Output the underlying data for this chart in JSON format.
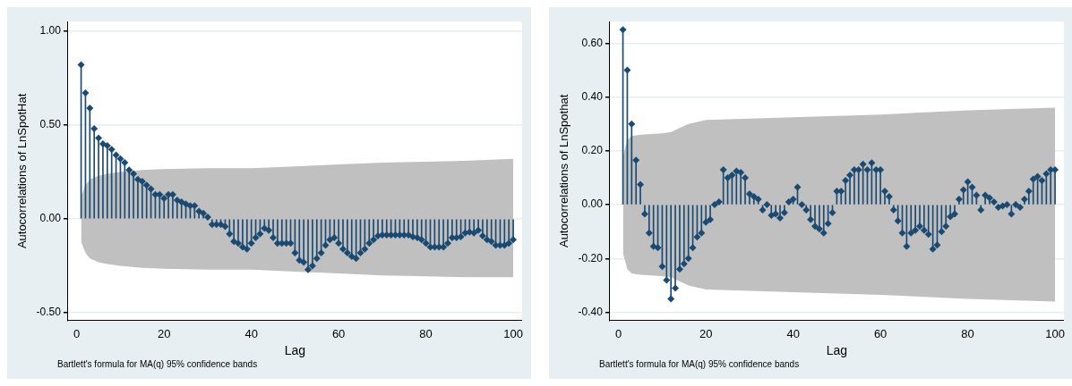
{
  "chart_data": [
    {
      "type": "lollipop",
      "xlabel": "Lag",
      "ylabel": "Autocorrelations of LnSpotHat",
      "annotations": [
        "Bartlett's formula for MA(q) 95% confidence bands"
      ],
      "grid": "y",
      "xlim": [
        -2,
        102
      ],
      "xticks": [
        0,
        20,
        40,
        60,
        80,
        100
      ],
      "ylim": [
        -0.54,
        1.05
      ],
      "yticks": [
        {
          "value": -0.5,
          "label": "-0.50"
        },
        {
          "value": 0,
          "label": "0.00"
        },
        {
          "value": 0.5,
          "label": "0.50"
        },
        {
          "value": 1,
          "label": "1.00"
        }
      ],
      "series": [
        {
          "type": "area",
          "color": "#c0c0c0",
          "x": [
            1,
            2,
            3,
            5,
            7,
            10,
            15,
            20,
            30,
            40,
            50,
            60,
            70,
            80,
            90,
            100
          ],
          "values": [
            0.12,
            0.18,
            0.21,
            0.23,
            0.24,
            0.25,
            0.26,
            0.265,
            0.27,
            0.27,
            0.28,
            0.29,
            0.3,
            0.305,
            0.31,
            0.32
          ]
        },
        {
          "type": "area",
          "color": "#c0c0c0",
          "x": [
            1,
            2,
            3,
            5,
            7,
            10,
            15,
            20,
            30,
            40,
            50,
            60,
            70,
            80,
            90,
            100
          ],
          "values": [
            -0.12,
            -0.18,
            -0.21,
            -0.23,
            -0.24,
            -0.25,
            -0.26,
            -0.265,
            -0.27,
            -0.27,
            -0.28,
            -0.29,
            -0.3,
            -0.305,
            -0.31,
            -0.31
          ]
        },
        {
          "color": "#1a4a72",
          "marker": "diamond",
          "x": [
            1,
            2,
            3,
            4,
            5,
            6,
            7,
            8,
            9,
            10,
            11,
            12,
            13,
            14,
            15,
            16,
            17,
            18,
            19,
            20,
            21,
            22,
            23,
            24,
            25,
            26,
            27,
            28,
            29,
            30,
            31,
            32,
            33,
            34,
            35,
            36,
            37,
            38,
            39,
            40,
            41,
            42,
            43,
            44,
            45,
            46,
            47,
            48,
            49,
            50,
            51,
            52,
            53,
            54,
            55,
            56,
            57,
            58,
            59,
            60,
            61,
            62,
            63,
            64,
            65,
            66,
            67,
            68,
            69,
            70,
            71,
            72,
            73,
            74,
            75,
            76,
            77,
            78,
            79,
            80,
            81,
            82,
            83,
            84,
            85,
            86,
            87,
            88,
            89,
            90,
            91,
            92,
            93,
            94,
            95,
            96,
            97,
            98,
            99,
            100
          ],
          "values": [
            0.82,
            0.67,
            0.59,
            0.48,
            0.43,
            0.4,
            0.39,
            0.37,
            0.34,
            0.32,
            0.3,
            0.26,
            0.24,
            0.21,
            0.2,
            0.18,
            0.16,
            0.13,
            0.13,
            0.11,
            0.13,
            0.13,
            0.1,
            0.09,
            0.08,
            0.07,
            0.07,
            0.04,
            0.03,
            0.01,
            -0.03,
            -0.03,
            -0.03,
            -0.04,
            -0.08,
            -0.12,
            -0.13,
            -0.15,
            -0.16,
            -0.13,
            -0.1,
            -0.08,
            -0.05,
            -0.06,
            -0.1,
            -0.13,
            -0.13,
            -0.13,
            -0.13,
            -0.18,
            -0.22,
            -0.23,
            -0.27,
            -0.25,
            -0.21,
            -0.18,
            -0.14,
            -0.11,
            -0.1,
            -0.13,
            -0.16,
            -0.18,
            -0.2,
            -0.21,
            -0.18,
            -0.16,
            -0.13,
            -0.11,
            -0.09,
            -0.085,
            -0.085,
            -0.085,
            -0.085,
            -0.085,
            -0.085,
            -0.085,
            -0.095,
            -0.1,
            -0.11,
            -0.13,
            -0.15,
            -0.15,
            -0.15,
            -0.15,
            -0.13,
            -0.1,
            -0.1,
            -0.095,
            -0.075,
            -0.07,
            -0.075,
            -0.06,
            -0.09,
            -0.11,
            -0.12,
            -0.14,
            -0.14,
            -0.14,
            -0.13,
            -0.11
          ]
        }
      ]
    },
    {
      "type": "lollipop",
      "xlabel": "Lag",
      "ylabel": "Autocorrelations of LnSpothat",
      "annotations": [
        "Bartlett's formula for MA(q) 95% confidence bands"
      ],
      "grid": "y",
      "xlim": [
        -2,
        102
      ],
      "xticks": [
        0,
        20,
        40,
        60,
        80,
        100
      ],
      "ylim": [
        -0.43,
        0.68
      ],
      "yticks": [
        {
          "value": -0.4,
          "label": "-0.40"
        },
        {
          "value": -0.2,
          "label": "-0.20"
        },
        {
          "value": 0,
          "label": "0.00"
        },
        {
          "value": 0.2,
          "label": "0.20"
        },
        {
          "value": 0.4,
          "label": "0.40"
        },
        {
          "value": 0.6,
          "label": "0.60"
        }
      ],
      "series": [
        {
          "type": "area",
          "color": "#c0c0c0",
          "x": [
            1,
            2,
            3,
            5,
            10,
            12,
            14,
            16,
            20,
            30,
            40,
            60,
            80,
            100
          ],
          "values": [
            0.18,
            0.24,
            0.255,
            0.26,
            0.265,
            0.27,
            0.285,
            0.3,
            0.315,
            0.32,
            0.325,
            0.335,
            0.35,
            0.36
          ]
        },
        {
          "type": "area",
          "color": "#c0c0c0",
          "x": [
            1,
            2,
            3,
            5,
            10,
            12,
            14,
            16,
            20,
            30,
            40,
            60,
            80,
            100
          ],
          "values": [
            -0.18,
            -0.24,
            -0.255,
            -0.26,
            -0.265,
            -0.27,
            -0.285,
            -0.3,
            -0.315,
            -0.32,
            -0.325,
            -0.335,
            -0.35,
            -0.36
          ]
        },
        {
          "color": "#1a4a72",
          "marker": "diamond",
          "x": [
            1,
            2,
            3,
            4,
            5,
            6,
            7,
            8,
            9,
            10,
            11,
            12,
            13,
            14,
            15,
            16,
            17,
            18,
            19,
            20,
            21,
            22,
            23,
            24,
            25,
            26,
            27,
            28,
            29,
            30,
            31,
            32,
            33,
            34,
            35,
            36,
            37,
            38,
            39,
            40,
            41,
            42,
            43,
            44,
            45,
            46,
            47,
            48,
            49,
            50,
            51,
            52,
            53,
            54,
            55,
            56,
            57,
            58,
            59,
            60,
            61,
            62,
            63,
            64,
            65,
            66,
            67,
            68,
            69,
            70,
            71,
            72,
            73,
            74,
            75,
            76,
            77,
            78,
            79,
            80,
            81,
            82,
            83,
            84,
            85,
            86,
            87,
            88,
            89,
            90,
            91,
            92,
            93,
            94,
            95,
            96,
            97,
            98,
            99,
            100
          ],
          "values": [
            0.65,
            0.5,
            0.3,
            0.165,
            0.075,
            -0.035,
            -0.105,
            -0.155,
            -0.16,
            -0.23,
            -0.28,
            -0.35,
            -0.31,
            -0.24,
            -0.22,
            -0.2,
            -0.16,
            -0.12,
            -0.105,
            -0.065,
            -0.055,
            0,
            0.01,
            0.13,
            0.1,
            0.11,
            0.125,
            0.12,
            0.1,
            0.04,
            0.03,
            0.02,
            -0.02,
            0,
            -0.04,
            -0.035,
            -0.05,
            -0.03,
            0.01,
            0.02,
            0.065,
            0,
            -0.02,
            -0.055,
            -0.08,
            -0.09,
            -0.105,
            -0.07,
            -0.03,
            0.05,
            0.05,
            0.09,
            0.11,
            0.13,
            0.13,
            0.15,
            0.13,
            0.155,
            0.13,
            0.13,
            0.05,
            0.03,
            -0.02,
            -0.06,
            -0.105,
            -0.155,
            -0.105,
            -0.095,
            -0.08,
            -0.095,
            -0.11,
            -0.165,
            -0.15,
            -0.1,
            -0.08,
            -0.045,
            -0.035,
            0.02,
            0.055,
            0.085,
            0.065,
            0.035,
            -0.02,
            0.035,
            0.025,
            0.01,
            -0.01,
            -0.005,
            0,
            -0.035,
            0,
            -0.01,
            0.02,
            0.05,
            0.095,
            0.105,
            0.09,
            0.115,
            0.13,
            0.13
          ]
        }
      ]
    }
  ]
}
